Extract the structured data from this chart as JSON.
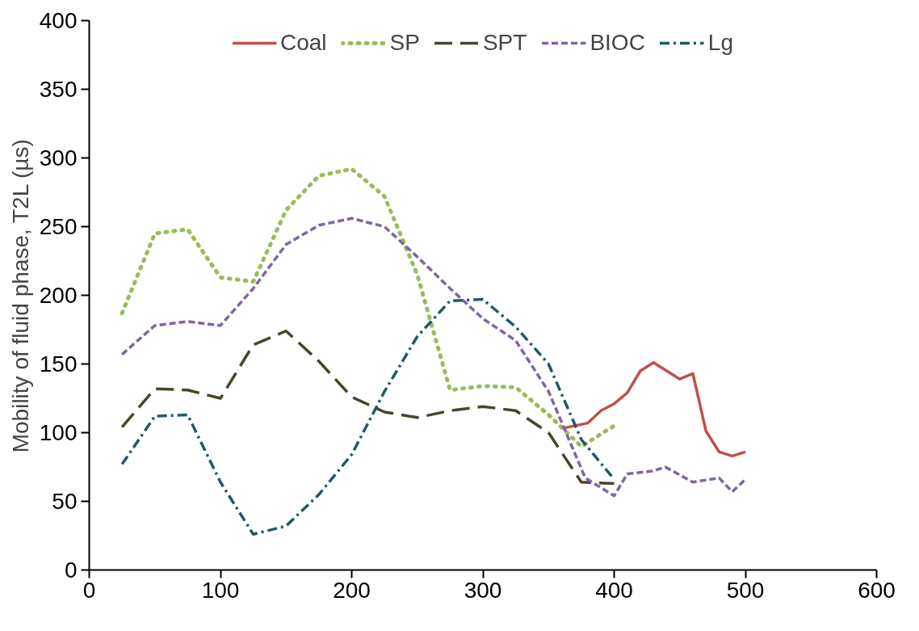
{
  "chart_data": {
    "type": "line",
    "ylabel": "Mobility of fluid phase, T2L (µs)",
    "xlim": [
      0,
      600
    ],
    "xticks": [
      0,
      100,
      200,
      300,
      400,
      500,
      600
    ],
    "ylim": [
      0,
      400
    ],
    "yticks": [
      0,
      50,
      100,
      150,
      200,
      250,
      300,
      350,
      400
    ],
    "grid": false,
    "legend": "top",
    "marker": "none",
    "series": [
      {
        "name": "Coal",
        "color": "#c0504d",
        "line_style": "solid",
        "x": [
          360,
          380,
          390,
          400,
          410,
          420,
          430,
          440,
          450,
          460,
          470,
          480,
          490,
          500
        ],
        "values": [
          103,
          107,
          116,
          121,
          129,
          145,
          151,
          145,
          139,
          143,
          101,
          86,
          83,
          86
        ]
      },
      {
        "name": "SP",
        "color": "#9bbb59",
        "line_style": "dotted",
        "x": [
          25,
          50,
          75,
          100,
          125,
          150,
          175,
          200,
          225,
          250,
          275,
          300,
          325,
          350,
          375,
          400
        ],
        "values": [
          187,
          245,
          248,
          213,
          210,
          262,
          287,
          292,
          272,
          215,
          131,
          134,
          133,
          113,
          90,
          105
        ]
      },
      {
        "name": "SPT",
        "color": "#4a452a",
        "line_style": "longdash",
        "x": [
          25,
          50,
          75,
          100,
          125,
          150,
          175,
          200,
          225,
          250,
          275,
          300,
          325,
          350,
          375,
          400
        ],
        "values": [
          104,
          132,
          131,
          125,
          164,
          174,
          152,
          126,
          115,
          111,
          116,
          119,
          116,
          100,
          64,
          63
        ]
      },
      {
        "name": "BIOC",
        "color": "#8064a2",
        "line_style": "dashed",
        "x": [
          25,
          50,
          75,
          100,
          125,
          150,
          175,
          200,
          225,
          250,
          275,
          300,
          325,
          350,
          378,
          400,
          410,
          429,
          439,
          460,
          480,
          490,
          500
        ],
        "values": [
          157,
          178,
          181,
          178,
          205,
          237,
          251,
          256,
          250,
          228,
          205,
          183,
          167,
          130,
          67,
          54,
          70,
          72,
          75,
          64,
          67,
          57,
          66
        ]
      },
      {
        "name": "Lg",
        "color": "#215968",
        "line_style": "dashdot",
        "x": [
          25,
          50,
          75,
          100,
          125,
          150,
          175,
          200,
          225,
          250,
          275,
          300,
          325,
          350,
          375,
          400
        ],
        "values": [
          77,
          112,
          113,
          64,
          26,
          32,
          55,
          84,
          130,
          170,
          196,
          197,
          177,
          150,
          95,
          66
        ]
      }
    ]
  }
}
